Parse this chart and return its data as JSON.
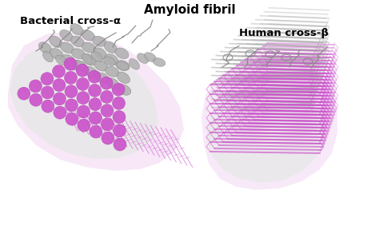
{
  "title": "Amyloid fibril",
  "label_left": "Bacterial cross-α",
  "label_right": "Human cross-β",
  "title_fontsize": 11,
  "label_fontsize": 9.5,
  "bg_color": "#ffffff",
  "gray_color": "#b0b0b0",
  "gray_dark": "#888888",
  "purple_color": "#cc55cc",
  "purple_dark": "#aa33aa",
  "light_gray_blob": "#e8e8e8",
  "light_purple_blob": "#f2d8f2"
}
